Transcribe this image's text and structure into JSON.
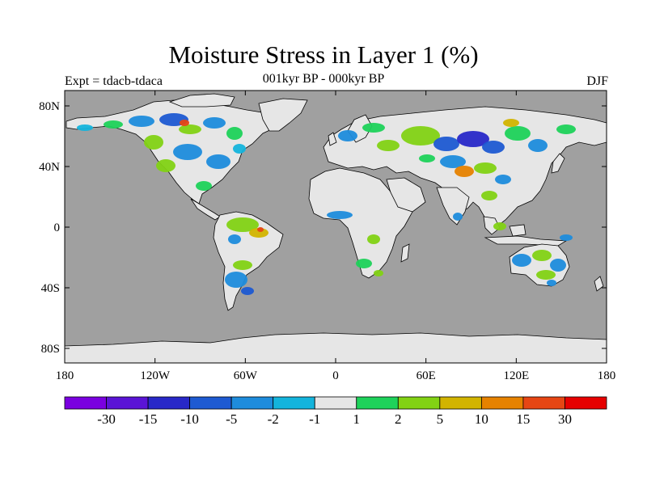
{
  "title": "Moisture Stress in Layer 1 (%)",
  "subtitle": "001kyr BP - 000kyr BP",
  "experiment": "Expt = tdacb-tdaca",
  "season": "DJF",
  "map": {
    "ocean_color": "#a0a0a0",
    "land_neutral_color": "#e6e6e6",
    "x_ticks": [
      "180",
      "120W",
      "60W",
      "0",
      "60E",
      "120E",
      "180"
    ],
    "y_ticks": [
      "80N",
      "40N",
      "0",
      "40S",
      "80S"
    ]
  },
  "colorbar": {
    "colors": [
      "#7a00e0",
      "#5a14d6",
      "#2828c8",
      "#1e5ad2",
      "#1e8cdc",
      "#14b4dc",
      "#e6e6e6",
      "#1ed25a",
      "#82d214",
      "#d2b400",
      "#e68200",
      "#e64614",
      "#e60000"
    ],
    "labels": [
      "-30",
      "-15",
      "-10",
      "-5",
      "-2",
      "-1",
      "1",
      "2",
      "5",
      "10",
      "15",
      "30"
    ]
  }
}
